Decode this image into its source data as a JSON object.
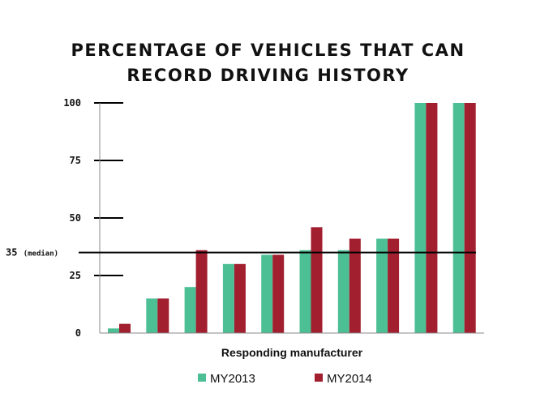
{
  "title_lines": [
    "PERCENTAGE OF VEHICLES THAT CAN",
    "RECORD DRIVING HISTORY"
  ],
  "chart_data": {
    "type": "bar",
    "title": "PERCENTAGE OF VEHICLES THAT CAN RECORD DRIVING HISTORY",
    "xlabel": "Responding manufacturer",
    "ylabel": "",
    "ylim": [
      0,
      100
    ],
    "y_ticks": [
      0,
      25,
      50,
      75,
      100
    ],
    "y_tick_labels": [
      "0",
      "25",
      "50",
      "75",
      "100"
    ],
    "median": {
      "value": 35,
      "label": "35",
      "label_suffix": "(median)"
    },
    "categories": [
      "",
      "",
      "",
      "",
      "",
      "",
      "",
      "",
      "",
      ""
    ],
    "series": [
      {
        "name": "MY2013",
        "color": "#4dbf95",
        "values": [
          2,
          15,
          20,
          30,
          34,
          36,
          36,
          41,
          100,
          100
        ]
      },
      {
        "name": "MY2014",
        "color": "#a11f2e",
        "values": [
          4,
          15,
          36,
          30,
          34,
          46,
          41,
          41,
          100,
          100
        ]
      }
    ],
    "legend_position": "bottom-center",
    "grid": false
  }
}
